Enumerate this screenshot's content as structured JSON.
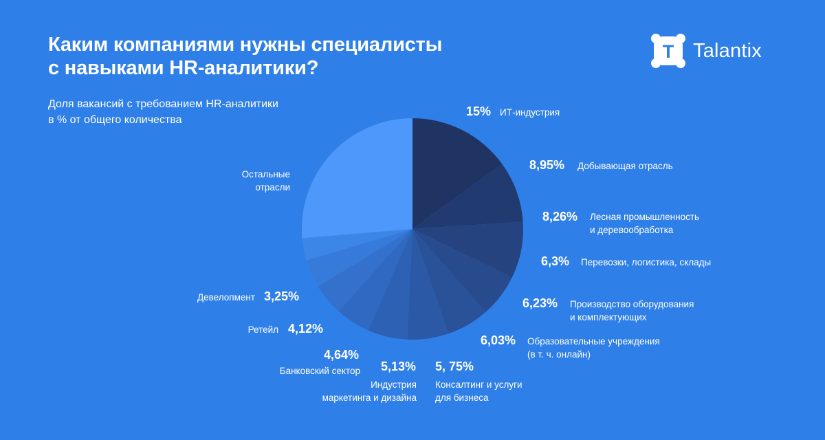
{
  "header": {
    "title_line1": "Каким компаниями нужны специалисты",
    "title_line2": "с навыками HR-аналитики?",
    "subtitle_line1": "Доля вакансий с требованием HR-аналитики",
    "subtitle_line2": "в % от общего количества"
  },
  "logo": {
    "text": "Talantix",
    "icon": "talantix-logo-icon",
    "letter": "T"
  },
  "colors": {
    "background": "#2f7fe9",
    "text": "#ffffff"
  },
  "chart_data": {
    "type": "pie",
    "start": "12 o'clock, clockwise",
    "slices": [
      {
        "label": [
          "ИТ-индустрия"
        ],
        "value": 15,
        "value_label": "15%",
        "color": "#1f3463"
      },
      {
        "label": [
          "Добывающая отрасль"
        ],
        "value": 8.95,
        "value_label": "8,95%",
        "color": "#213b70"
      },
      {
        "label": [
          "Лесная промышленность",
          "и деревообработка"
        ],
        "value": 8.26,
        "value_label": "8,26%",
        "color": "#25437f"
      },
      {
        "label": [
          "Перевозки, логистика, склады"
        ],
        "value": 6.3,
        "value_label": "6,3%",
        "color": "#274b8d"
      },
      {
        "label": [
          "Производство оборудования",
          "и комплектующих"
        ],
        "value": 6.23,
        "value_label": "6,23%",
        "color": "#295299"
      },
      {
        "label": [
          "Образовательные учреждения",
          "(в т. ч. онлайн)"
        ],
        "value": 6.03,
        "value_label": "6,03%",
        "color": "#2b59a5"
      },
      {
        "label": [
          "Консалтинг и услуги",
          "для бизнеса"
        ],
        "value": 5.75,
        "value_label": "5, 75%",
        "color": "#2d61b3"
      },
      {
        "label": [
          "Индустрия",
          "маркетинга и дизайна"
        ],
        "value": 5.13,
        "value_label": "5,13%",
        "color": "#3069c1"
      },
      {
        "label": [
          "Банковский сектор"
        ],
        "value": 4.64,
        "value_label": "4,64%",
        "color": "#3371cd"
      },
      {
        "label": [
          "Ретейл"
        ],
        "value": 4.12,
        "value_label": "4,12%",
        "color": "#377bda"
      },
      {
        "label": [
          "Девелопмент"
        ],
        "value": 3.25,
        "value_label": "3,25%",
        "color": "#3c86e8"
      },
      {
        "label": [
          "Остальные",
          "отрасли"
        ],
        "value": 26.34,
        "value_label": "",
        "color": "#4f98fb"
      }
    ]
  }
}
